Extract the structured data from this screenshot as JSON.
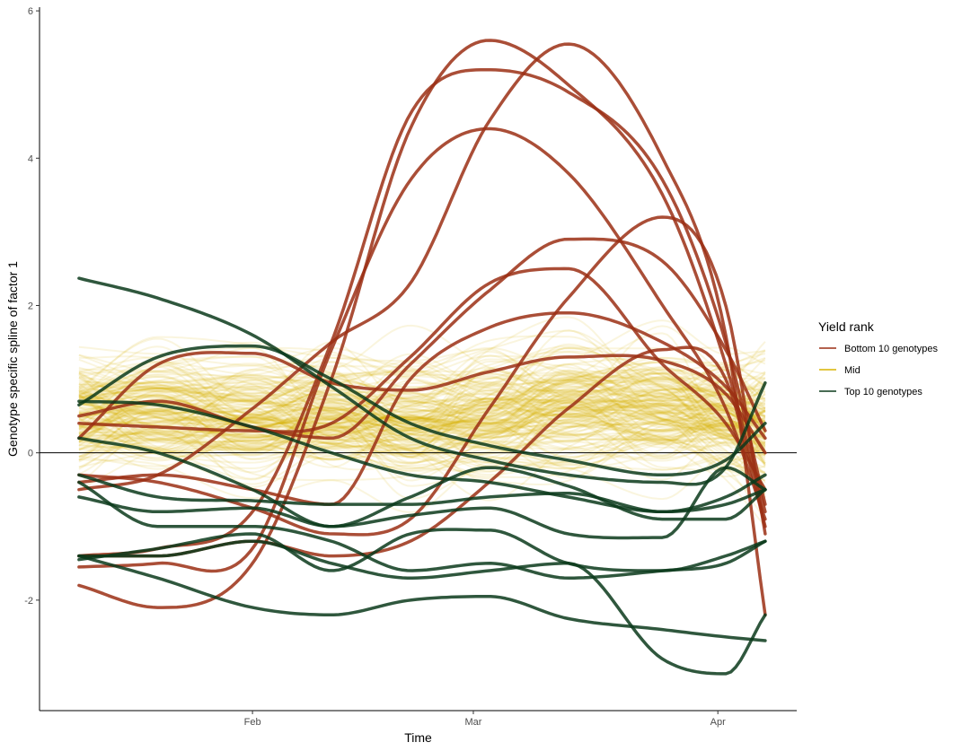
{
  "chart_data": {
    "type": "line",
    "title": "",
    "xlabel": "Time",
    "ylabel": "Genotype specific spline of factor 1",
    "x_ticks": [
      {
        "label": "Feb",
        "day": 0
      },
      {
        "label": "Mar",
        "day": 28
      },
      {
        "label": "Apr",
        "day": 59
      }
    ],
    "xlim": [
      -27,
      69
    ],
    "ylim": [
      -3.5,
      6.05
    ],
    "x_domain": [
      -22,
      65
    ],
    "y_ticks": [
      -2,
      0,
      2,
      4,
      6
    ],
    "y_tick_labels": [
      "-2",
      "0",
      "2",
      "4",
      "6"
    ],
    "hline": 0,
    "x_knots": [
      -22,
      -12,
      0,
      10,
      20,
      30,
      40,
      52,
      60,
      65
    ],
    "legend": {
      "title": "Yield rank",
      "position": "right",
      "entries": [
        {
          "label": "Bottom 10 genotypes",
          "color": "#9b2f14"
        },
        {
          "label": "Mid",
          "color": "#d8b400"
        },
        {
          "label": "Top 10 genotypes",
          "color": "#0b3a1b"
        }
      ]
    },
    "mid_band": {
      "name": "Mid",
      "count": 180,
      "color": "#d8b400",
      "center": [
        0.5,
        0.55,
        0.5,
        0.5,
        0.45,
        0.55,
        0.6,
        0.6,
        0.5,
        0.3
      ],
      "spread": [
        0.75,
        0.75,
        0.75,
        0.75,
        0.8,
        0.85,
        0.85,
        0.8,
        0.75,
        0.95
      ]
    },
    "series": [
      {
        "name": "Bottom 10 genotypes",
        "color": "#9b2f14",
        "values": [
          -1.8,
          -2.1,
          -1.5,
          1.0,
          4.4,
          5.6,
          5.0,
          3.5,
          1.2,
          -0.8
        ]
      },
      {
        "name": "Bottom 10 genotypes",
        "color": "#9b2f14",
        "values": [
          -1.4,
          -1.3,
          -0.8,
          1.5,
          4.6,
          5.2,
          4.9,
          3.7,
          1.5,
          -0.7
        ]
      },
      {
        "name": "Bottom 10 genotypes",
        "color": "#9b2f14",
        "values": [
          -1.55,
          -1.5,
          -1.3,
          1.4,
          3.7,
          4.4,
          3.8,
          2.0,
          0.6,
          -0.9
        ]
      },
      {
        "name": "Bottom 10 genotypes",
        "color": "#9b2f14",
        "values": [
          -0.5,
          -0.3,
          0.6,
          1.5,
          2.3,
          4.5,
          5.55,
          4.0,
          1.6,
          -2.2
        ]
      },
      {
        "name": "Bottom 10 genotypes",
        "color": "#9b2f14",
        "values": [
          0.5,
          0.7,
          0.35,
          0.2,
          1.2,
          2.2,
          2.9,
          2.6,
          1.4,
          0.3
        ]
      },
      {
        "name": "Bottom 10 genotypes",
        "color": "#9b2f14",
        "values": [
          -0.3,
          -0.4,
          -0.75,
          -1.1,
          -0.9,
          0.6,
          2.1,
          3.2,
          2.0,
          -1.1
        ]
      },
      {
        "name": "Bottom 10 genotypes",
        "color": "#9b2f14",
        "values": [
          0.4,
          0.35,
          0.3,
          0.4,
          1.3,
          2.3,
          2.5,
          1.2,
          0.4,
          -0.5
        ]
      },
      {
        "name": "Bottom 10 genotypes",
        "color": "#9b2f14",
        "values": [
          0.2,
          1.2,
          1.35,
          0.95,
          0.85,
          1.1,
          1.3,
          1.25,
          0.8,
          0.0
        ]
      },
      {
        "name": "Bottom 10 genotypes",
        "color": "#9b2f14",
        "values": [
          -0.4,
          -0.3,
          -0.5,
          -0.7,
          1.0,
          1.7,
          1.9,
          1.5,
          0.9,
          0.2
        ]
      },
      {
        "name": "Bottom 10 genotypes",
        "color": "#9b2f14",
        "values": [
          -1.4,
          -1.4,
          -1.2,
          -1.4,
          -1.2,
          -0.4,
          0.6,
          1.4,
          1.0,
          -1.0
        ]
      },
      {
        "name": "Top 10 genotypes",
        "color": "#0b3a1b",
        "values": [
          2.37,
          2.1,
          1.6,
          0.9,
          0.2,
          -0.1,
          -0.3,
          -0.4,
          -0.2,
          0.95
        ]
      },
      {
        "name": "Top 10 genotypes",
        "color": "#0b3a1b",
        "values": [
          0.65,
          1.3,
          1.45,
          1.0,
          0.4,
          0.1,
          -0.1,
          -0.3,
          -0.1,
          0.4
        ]
      },
      {
        "name": "Top 10 genotypes",
        "color": "#0b3a1b",
        "values": [
          0.7,
          0.65,
          0.35,
          0.0,
          -0.3,
          -0.4,
          -0.6,
          -0.8,
          -0.6,
          -0.3
        ]
      },
      {
        "name": "Top 10 genotypes",
        "color": "#0b3a1b",
        "values": [
          0.2,
          0.0,
          -0.5,
          -1.0,
          -0.6,
          -0.2,
          -0.45,
          -0.9,
          -0.9,
          -0.5
        ]
      },
      {
        "name": "Top 10 genotypes",
        "color": "#0b3a1b",
        "values": [
          -0.3,
          -0.6,
          -0.65,
          -0.7,
          -0.7,
          -0.6,
          -0.55,
          -0.8,
          -0.7,
          -0.5
        ]
      },
      {
        "name": "Top 10 genotypes",
        "color": "#0b3a1b",
        "values": [
          -0.6,
          -0.8,
          -0.75,
          -1.0,
          -0.85,
          -0.75,
          -1.1,
          -1.15,
          -0.2,
          -0.5
        ]
      },
      {
        "name": "Top 10 genotypes",
        "color": "#0b3a1b",
        "values": [
          -0.4,
          -1.0,
          -1.0,
          -1.2,
          -1.6,
          -1.5,
          -1.7,
          -1.6,
          -1.5,
          -1.2
        ]
      },
      {
        "name": "Top 10 genotypes",
        "color": "#0b3a1b",
        "values": [
          -1.45,
          -1.3,
          -1.1,
          -1.6,
          -1.1,
          -1.05,
          -1.5,
          -1.6,
          -1.4,
          -1.2
        ]
      },
      {
        "name": "Top 10 genotypes",
        "color": "#0b3a1b",
        "values": [
          -1.4,
          -1.7,
          -2.1,
          -2.2,
          -2.0,
          -1.95,
          -2.25,
          -2.4,
          -2.5,
          -2.55
        ]
      },
      {
        "name": "Top 10 genotypes",
        "color": "#0b3a1b",
        "values": [
          -1.4,
          -1.4,
          -1.2,
          -1.5,
          -1.7,
          -1.6,
          -1.5,
          -2.8,
          -3.0,
          -2.2
        ]
      }
    ]
  }
}
